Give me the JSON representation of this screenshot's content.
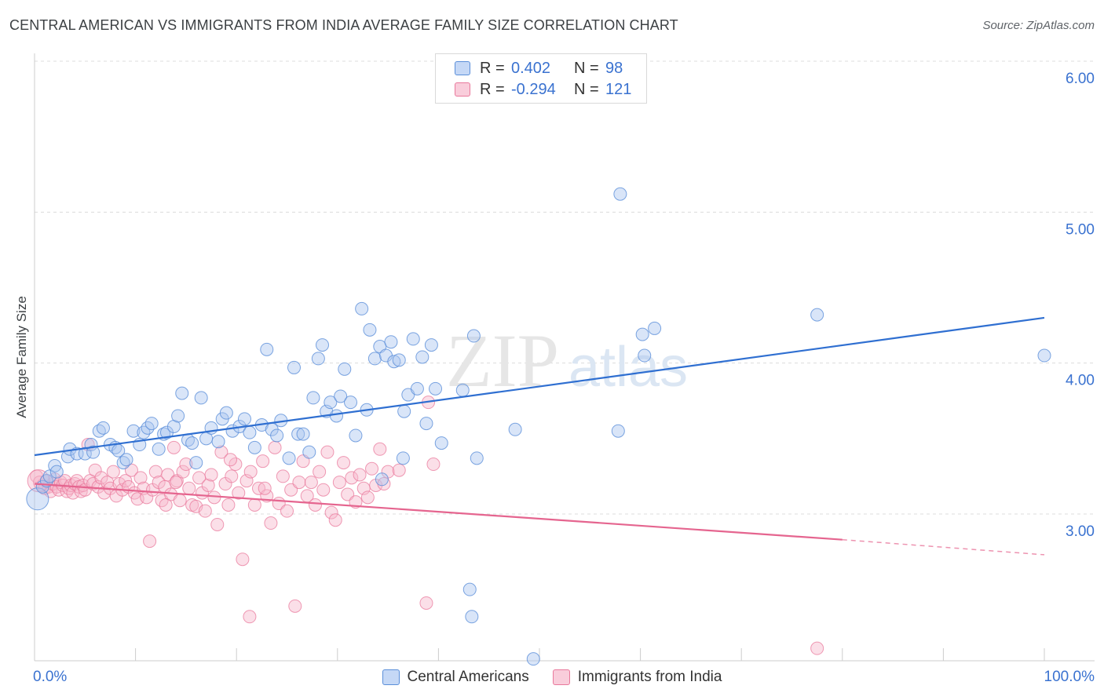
{
  "header": {
    "title": "CENTRAL AMERICAN VS IMMIGRANTS FROM INDIA AVERAGE FAMILY SIZE CORRELATION CHART",
    "source": "Source: ZipAtlas.com"
  },
  "watermark": {
    "zip": "ZIP",
    "atlas": "atlas"
  },
  "colors": {
    "blue_fill": "#aac6f0",
    "blue_stroke": "#5b8fd9",
    "blue_line": "#2f6fd1",
    "pink_fill": "#f6b8cc",
    "pink_stroke": "#e9799c",
    "pink_line": "#e5658f",
    "tick_text": "#3a72d0",
    "grid": "#dcdcdc"
  },
  "legend": {
    "rows": [
      {
        "r_label": "R =",
        "r_value": "0.402",
        "n_label": "N =",
        "n_value": "98"
      },
      {
        "r_label": "R =",
        "r_value": "-0.294",
        "n_label": "N =",
        "n_value": "121"
      }
    ]
  },
  "bottom_legend": {
    "series1": "Central Americans",
    "series2": "Immigrants from India"
  },
  "axes": {
    "ylabel": "Average Family Size",
    "x_left_label": "0.0%",
    "x_right_label": "100.0%",
    "y_ticks": [
      "6.00",
      "5.00",
      "4.00",
      "3.00"
    ]
  },
  "chart_data": {
    "type": "scatter",
    "title": "CENTRAL AMERICAN VS IMMIGRANTS FROM INDIA AVERAGE FAMILY SIZE CORRELATION CHART",
    "xlabel": "",
    "ylabel": "Average Family Size",
    "xlim": [
      0,
      100
    ],
    "ylim": [
      2.05,
      6.1
    ],
    "y_ticks": [
      3.0,
      4.0,
      5.0,
      6.0
    ],
    "grid": true,
    "legend_position": "top-center",
    "series": [
      {
        "name": "Central Americans",
        "r": 0.402,
        "n": 98,
        "trend": {
          "x": [
            0,
            100
          ],
          "y": [
            3.39,
            4.3
          ]
        },
        "points": [
          [
            0.3,
            3.1
          ],
          [
            0.8,
            3.18
          ],
          [
            1.2,
            3.22
          ],
          [
            1.5,
            3.25
          ],
          [
            2.0,
            3.32
          ],
          [
            2.2,
            3.28
          ],
          [
            3.3,
            3.38
          ],
          [
            3.5,
            3.43
          ],
          [
            4.2,
            3.4
          ],
          [
            5.0,
            3.4
          ],
          [
            5.6,
            3.46
          ],
          [
            5.8,
            3.41
          ],
          [
            6.4,
            3.55
          ],
          [
            6.8,
            3.57
          ],
          [
            7.5,
            3.46
          ],
          [
            8.0,
            3.44
          ],
          [
            8.3,
            3.42
          ],
          [
            8.8,
            3.34
          ],
          [
            9.1,
            3.36
          ],
          [
            9.8,
            3.55
          ],
          [
            10.4,
            3.46
          ],
          [
            10.8,
            3.54
          ],
          [
            11.2,
            3.57
          ],
          [
            11.6,
            3.6
          ],
          [
            12.3,
            3.43
          ],
          [
            12.8,
            3.53
          ],
          [
            13.1,
            3.54
          ],
          [
            13.8,
            3.58
          ],
          [
            14.2,
            3.65
          ],
          [
            14.6,
            3.8
          ],
          [
            15.2,
            3.49
          ],
          [
            15.6,
            3.47
          ],
          [
            16.0,
            3.34
          ],
          [
            16.5,
            3.77
          ],
          [
            17.0,
            3.5
          ],
          [
            17.5,
            3.57
          ],
          [
            18.2,
            3.48
          ],
          [
            18.6,
            3.63
          ],
          [
            19.0,
            3.67
          ],
          [
            19.6,
            3.55
          ],
          [
            20.3,
            3.58
          ],
          [
            20.8,
            3.63
          ],
          [
            21.3,
            3.54
          ],
          [
            21.8,
            3.44
          ],
          [
            22.5,
            3.59
          ],
          [
            23.0,
            4.09
          ],
          [
            23.5,
            3.56
          ],
          [
            24.0,
            3.52
          ],
          [
            24.4,
            3.62
          ],
          [
            25.2,
            3.37
          ],
          [
            25.7,
            3.97
          ],
          [
            26.1,
            3.53
          ],
          [
            26.6,
            3.53
          ],
          [
            27.2,
            3.41
          ],
          [
            27.6,
            3.77
          ],
          [
            28.1,
            4.03
          ],
          [
            28.5,
            4.12
          ],
          [
            28.9,
            3.68
          ],
          [
            29.3,
            3.74
          ],
          [
            29.9,
            3.65
          ],
          [
            30.3,
            3.78
          ],
          [
            30.7,
            3.96
          ],
          [
            31.3,
            3.74
          ],
          [
            31.8,
            3.52
          ],
          [
            32.4,
            4.36
          ],
          [
            32.9,
            3.69
          ],
          [
            33.2,
            4.22
          ],
          [
            33.7,
            4.03
          ],
          [
            34.2,
            4.11
          ],
          [
            34.8,
            4.05
          ],
          [
            35.3,
            4.14
          ],
          [
            35.6,
            4.01
          ],
          [
            36.1,
            4.02
          ],
          [
            36.6,
            3.68
          ],
          [
            37.0,
            3.79
          ],
          [
            37.5,
            4.16
          ],
          [
            37.9,
            3.83
          ],
          [
            38.4,
            4.04
          ],
          [
            38.8,
            3.6
          ],
          [
            39.3,
            4.12
          ],
          [
            39.7,
            3.83
          ],
          [
            40.3,
            3.47
          ],
          [
            42.4,
            3.82
          ],
          [
            43.5,
            4.18
          ],
          [
            43.8,
            3.37
          ],
          [
            47.6,
            3.56
          ],
          [
            57.8,
            3.55
          ],
          [
            58.0,
            5.12
          ],
          [
            60.2,
            4.19
          ],
          [
            60.4,
            4.05
          ],
          [
            61.4,
            4.23
          ],
          [
            77.5,
            4.32
          ],
          [
            100.0,
            4.05
          ],
          [
            34.4,
            3.23
          ],
          [
            36.5,
            3.37
          ],
          [
            43.1,
            2.5
          ],
          [
            43.3,
            2.32
          ],
          [
            49.4,
            2.04
          ]
        ]
      },
      {
        "name": "Immigrants from India",
        "r": -0.294,
        "n": 121,
        "trend": {
          "x": [
            0,
            80,
            100
          ],
          "y": [
            3.2,
            2.83,
            2.73
          ],
          "dashed_from_x": 80
        },
        "points": [
          [
            0.2,
            3.25
          ],
          [
            0.5,
            3.21
          ],
          [
            0.8,
            3.19
          ],
          [
            1.0,
            3.17
          ],
          [
            1.2,
            3.22
          ],
          [
            1.4,
            3.18
          ],
          [
            1.6,
            3.15
          ],
          [
            1.8,
            3.2
          ],
          [
            2.0,
            3.23
          ],
          [
            2.2,
            3.18
          ],
          [
            2.4,
            3.16
          ],
          [
            2.6,
            3.21
          ],
          [
            2.8,
            3.19
          ],
          [
            3.0,
            3.22
          ],
          [
            3.2,
            3.15
          ],
          [
            3.4,
            3.17
          ],
          [
            3.6,
            3.19
          ],
          [
            3.8,
            3.14
          ],
          [
            4.0,
            3.2
          ],
          [
            4.2,
            3.22
          ],
          [
            4.4,
            3.18
          ],
          [
            4.6,
            3.15
          ],
          [
            4.8,
            3.19
          ],
          [
            5.0,
            3.16
          ],
          [
            5.3,
            3.46
          ],
          [
            5.5,
            3.22
          ],
          [
            5.8,
            3.2
          ],
          [
            6.0,
            3.29
          ],
          [
            6.3,
            3.18
          ],
          [
            6.6,
            3.24
          ],
          [
            6.9,
            3.14
          ],
          [
            7.2,
            3.21
          ],
          [
            7.5,
            3.17
          ],
          [
            7.8,
            3.28
          ],
          [
            8.1,
            3.12
          ],
          [
            8.4,
            3.2
          ],
          [
            8.7,
            3.16
          ],
          [
            9.0,
            3.22
          ],
          [
            9.3,
            3.18
          ],
          [
            9.6,
            3.29
          ],
          [
            9.9,
            3.14
          ],
          [
            10.2,
            3.1
          ],
          [
            10.5,
            3.24
          ],
          [
            10.8,
            3.17
          ],
          [
            11.1,
            3.11
          ],
          [
            11.4,
            2.82
          ],
          [
            11.7,
            3.16
          ],
          [
            12.0,
            3.28
          ],
          [
            12.3,
            3.21
          ],
          [
            12.6,
            3.09
          ],
          [
            12.9,
            3.18
          ],
          [
            13.2,
            3.26
          ],
          [
            13.5,
            3.13
          ],
          [
            13.8,
            3.44
          ],
          [
            14.1,
            3.22
          ],
          [
            14.4,
            3.09
          ],
          [
            14.7,
            3.28
          ],
          [
            15.0,
            3.33
          ],
          [
            15.3,
            3.17
          ],
          [
            15.6,
            3.06
          ],
          [
            16.0,
            3.05
          ],
          [
            16.3,
            3.24
          ],
          [
            16.6,
            3.14
          ],
          [
            16.9,
            3.02
          ],
          [
            17.2,
            3.19
          ],
          [
            17.5,
            3.26
          ],
          [
            17.8,
            3.11
          ],
          [
            18.1,
            2.93
          ],
          [
            18.5,
            3.41
          ],
          [
            18.9,
            3.2
          ],
          [
            19.2,
            3.06
          ],
          [
            19.5,
            3.25
          ],
          [
            19.9,
            3.33
          ],
          [
            20.2,
            3.14
          ],
          [
            20.6,
            2.7
          ],
          [
            21.0,
            3.22
          ],
          [
            21.4,
            3.28
          ],
          [
            21.8,
            3.06
          ],
          [
            22.2,
            3.17
          ],
          [
            22.6,
            3.35
          ],
          [
            23.0,
            3.12
          ],
          [
            23.4,
            2.94
          ],
          [
            23.8,
            3.44
          ],
          [
            24.2,
            3.07
          ],
          [
            24.6,
            3.25
          ],
          [
            25.0,
            3.02
          ],
          [
            25.4,
            3.16
          ],
          [
            25.8,
            2.39
          ],
          [
            26.2,
            3.21
          ],
          [
            26.6,
            3.35
          ],
          [
            27.0,
            3.12
          ],
          [
            27.4,
            3.21
          ],
          [
            27.8,
            3.06
          ],
          [
            28.2,
            3.28
          ],
          [
            28.6,
            3.16
          ],
          [
            29.0,
            3.41
          ],
          [
            29.4,
            3.01
          ],
          [
            29.8,
            2.96
          ],
          [
            30.2,
            3.21
          ],
          [
            30.6,
            3.34
          ],
          [
            31.0,
            3.13
          ],
          [
            31.4,
            3.24
          ],
          [
            31.8,
            3.08
          ],
          [
            32.2,
            3.26
          ],
          [
            32.6,
            3.17
          ],
          [
            33.0,
            3.11
          ],
          [
            33.4,
            3.3
          ],
          [
            33.8,
            3.19
          ],
          [
            34.2,
            3.43
          ],
          [
            34.6,
            3.2
          ],
          [
            35.0,
            3.28
          ],
          [
            36.1,
            3.29
          ],
          [
            39.0,
            3.74
          ],
          [
            39.5,
            3.33
          ],
          [
            19.4,
            3.36
          ],
          [
            21.3,
            2.32
          ],
          [
            14.0,
            3.21
          ],
          [
            13.0,
            3.06
          ],
          [
            38.8,
            2.41
          ],
          [
            77.5,
            2.11
          ],
          [
            22.8,
            3.17
          ]
        ]
      }
    ]
  }
}
